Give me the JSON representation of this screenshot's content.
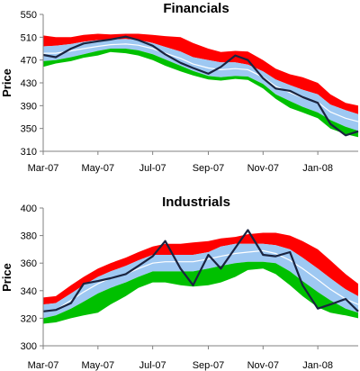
{
  "colors": {
    "upper_band": "#ff0000",
    "inner_band": "#9ec8f2",
    "lower_band": "#00c000",
    "price_line": "#1a2440",
    "mean_line": "#ffffff"
  },
  "x_tick_labels": [
    "Mar-07",
    "May-07",
    "Jul-07",
    "Sep-07",
    "Nov-07",
    "Jan-08"
  ],
  "chart_data": [
    {
      "type": "area",
      "title": "Financials",
      "ylabel": "Price",
      "xlabel": "",
      "ylim": [
        310,
        550
      ],
      "yticks": [
        310,
        350,
        390,
        430,
        470,
        510,
        550
      ],
      "x_ticks": [
        "Mar-07",
        "May-07",
        "Jul-07",
        "Sep-07",
        "Nov-07",
        "Jan-08"
      ],
      "grid": false,
      "legend": "none",
      "x": [
        "2007-03-01",
        "2007-03-15",
        "2007-04-01",
        "2007-04-15",
        "2007-05-01",
        "2007-05-15",
        "2007-06-01",
        "2007-06-15",
        "2007-07-01",
        "2007-07-15",
        "2007-08-01",
        "2007-08-15",
        "2007-09-01",
        "2007-09-15",
        "2007-10-01",
        "2007-10-15",
        "2007-11-01",
        "2007-11-15",
        "2007-12-01",
        "2007-12-15",
        "2008-01-01",
        "2008-01-15",
        "2008-02-01",
        "2008-02-15"
      ],
      "series": [
        {
          "values": [
            513,
            510,
            510,
            514,
            516,
            515,
            516,
            516,
            514,
            512,
            510,
            500,
            490,
            484,
            486,
            485,
            470,
            455,
            445,
            440,
            430,
            410,
            395,
            390
          ]
        },
        {
          "values": [
            494,
            495,
            498,
            502,
            505,
            506,
            507,
            505,
            500,
            493,
            485,
            475,
            470,
            466,
            466,
            462,
            450,
            436,
            426,
            418,
            410,
            392,
            382,
            375
          ]
        },
        {
          "values": [
            482,
            482,
            486,
            490,
            494,
            497,
            498,
            496,
            490,
            482,
            473,
            463,
            456,
            453,
            455,
            453,
            440,
            424,
            413,
            404,
            396,
            379,
            368,
            362
          ]
        },
        {
          "values": [
            468,
            470,
            475,
            480,
            486,
            490,
            490,
            487,
            480,
            471,
            460,
            451,
            442,
            440,
            442,
            441,
            428,
            410,
            398,
            388,
            378,
            365,
            353,
            346
          ]
        },
        {
          "values": [
            458,
            464,
            468,
            474,
            478,
            484,
            482,
            478,
            470,
            460,
            450,
            443,
            436,
            434,
            437,
            435,
            420,
            402,
            386,
            378,
            368,
            350,
            340,
            335
          ]
        },
        {
          "values": [
            479,
            475,
            490,
            499,
            503,
            506,
            511,
            505,
            495,
            480,
            465,
            456,
            446,
            458,
            478,
            470,
            438,
            420,
            416,
            405,
            395,
            358,
            338,
            345
          ]
        }
      ]
    },
    {
      "type": "area",
      "title": "Industrials",
      "ylabel": "Price",
      "xlabel": "",
      "ylim": [
        300,
        400
      ],
      "yticks": [
        300,
        320,
        340,
        360,
        380,
        400
      ],
      "x_ticks": [
        "Mar-07",
        "May-07",
        "Jul-07",
        "Sep-07",
        "Nov-07",
        "Jan-08"
      ],
      "grid": false,
      "legend": "none",
      "x": [
        "2007-03-01",
        "2007-03-15",
        "2007-04-01",
        "2007-04-15",
        "2007-05-01",
        "2007-05-15",
        "2007-06-01",
        "2007-06-15",
        "2007-07-01",
        "2007-07-15",
        "2007-08-01",
        "2007-08-15",
        "2007-09-01",
        "2007-09-15",
        "2007-10-01",
        "2007-10-15",
        "2007-11-01",
        "2007-11-15",
        "2007-12-01",
        "2007-12-15",
        "2008-01-01",
        "2008-01-15",
        "2008-02-01",
        "2008-02-15"
      ],
      "series": [
        {
          "values": [
            335,
            336,
            344,
            350,
            356,
            360,
            364,
            368,
            372,
            374,
            374,
            375,
            376,
            378,
            379,
            381,
            382,
            382,
            380,
            376,
            370,
            362,
            352,
            345
          ]
        },
        {
          "values": [
            330,
            331,
            338,
            344,
            350,
            354,
            358,
            362,
            366,
            366,
            366,
            366,
            368,
            372,
            374,
            374,
            374,
            373,
            370,
            364,
            356,
            349,
            341,
            336
          ]
        },
        {
          "values": [
            325,
            326,
            333,
            339,
            345,
            349,
            352,
            356,
            360,
            361,
            361,
            361,
            363,
            365,
            367,
            368,
            369,
            367,
            362,
            356,
            348,
            341,
            334,
            330
          ]
        },
        {
          "values": [
            320,
            322,
            327,
            332,
            338,
            342,
            346,
            350,
            354,
            354,
            354,
            354,
            356,
            358,
            360,
            361,
            361,
            360,
            354,
            347,
            339,
            333,
            327,
            324
          ]
        },
        {
          "values": [
            316,
            317,
            320,
            322,
            324,
            330,
            336,
            342,
            346,
            346,
            344,
            343,
            344,
            346,
            350,
            355,
            356,
            352,
            344,
            336,
            328,
            324,
            322,
            320
          ]
        },
        {
          "values": [
            325,
            326,
            331,
            345,
            347,
            349,
            352,
            358,
            365,
            376,
            356,
            344,
            366,
            356,
            371,
            384,
            366,
            365,
            368,
            344,
            327,
            330,
            334,
            325
          ]
        }
      ]
    }
  ]
}
